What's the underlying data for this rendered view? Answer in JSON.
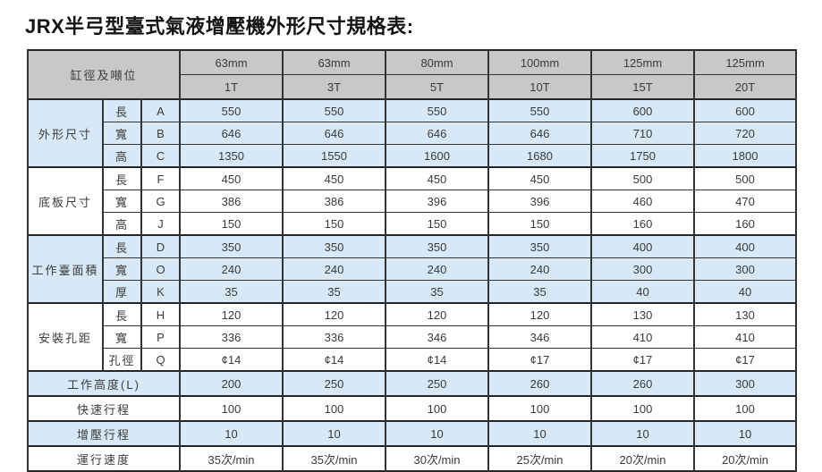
{
  "title": "JRX半弓型臺式氣液增壓機外形尺寸規格表:",
  "table": {
    "corner_header": "缸徑及噸位",
    "columns": [
      {
        "bore": "63mm",
        "tonnage": "1T"
      },
      {
        "bore": "63mm",
        "tonnage": "3T"
      },
      {
        "bore": "80mm",
        "tonnage": "5T"
      },
      {
        "bore": "100mm",
        "tonnage": "10T"
      },
      {
        "bore": "125mm",
        "tonnage": "15T"
      },
      {
        "bore": "125mm",
        "tonnage": "20T"
      }
    ],
    "groups": [
      {
        "label": "外形尺寸",
        "tint": "blue",
        "rows": [
          {
            "dim": "長",
            "code": "A",
            "values": [
              "550",
              "550",
              "550",
              "550",
              "600",
              "600"
            ]
          },
          {
            "dim": "寬",
            "code": "B",
            "values": [
              "646",
              "646",
              "646",
              "646",
              "710",
              "720"
            ]
          },
          {
            "dim": "高",
            "code": "C",
            "values": [
              "1350",
              "1550",
              "1600",
              "1680",
              "1750",
              "1800"
            ]
          }
        ]
      },
      {
        "label": "底板尺寸",
        "tint": "white",
        "rows": [
          {
            "dim": "長",
            "code": "F",
            "values": [
              "450",
              "450",
              "450",
              "450",
              "500",
              "500"
            ]
          },
          {
            "dim": "寬",
            "code": "G",
            "values": [
              "386",
              "386",
              "396",
              "396",
              "460",
              "470"
            ]
          },
          {
            "dim": "高",
            "code": "J",
            "values": [
              "150",
              "150",
              "150",
              "150",
              "160",
              "160"
            ]
          }
        ]
      },
      {
        "label": "工作臺面積",
        "tint": "blue",
        "rows": [
          {
            "dim": "長",
            "code": "D",
            "values": [
              "350",
              "350",
              "350",
              "350",
              "400",
              "400"
            ]
          },
          {
            "dim": "寬",
            "code": "O",
            "values": [
              "240",
              "240",
              "240",
              "240",
              "300",
              "300"
            ]
          },
          {
            "dim": "厚",
            "code": "K",
            "values": [
              "35",
              "35",
              "35",
              "35",
              "40",
              "40"
            ]
          }
        ]
      },
      {
        "label": "安裝孔距",
        "tint": "white",
        "rows": [
          {
            "dim": "長",
            "code": "H",
            "values": [
              "120",
              "120",
              "120",
              "120",
              "130",
              "130"
            ]
          },
          {
            "dim": "寬",
            "code": "P",
            "values": [
              "336",
              "336",
              "346",
              "346",
              "410",
              "410"
            ]
          },
          {
            "dim": "孔徑",
            "code": "Q",
            "values": [
              "¢14",
              "¢14",
              "¢14",
              "¢17",
              "¢17",
              "¢17"
            ]
          }
        ]
      }
    ],
    "footer_rows": [
      {
        "label": "工作高度(L)",
        "tint": "blue",
        "values": [
          "200",
          "250",
          "250",
          "260",
          "260",
          "300"
        ]
      },
      {
        "label": "快速行程",
        "tint": "white",
        "values": [
          "100",
          "100",
          "100",
          "100",
          "100",
          "100"
        ]
      },
      {
        "label": "增壓行程",
        "tint": "blue",
        "values": [
          "10",
          "10",
          "10",
          "10",
          "10",
          "10"
        ]
      },
      {
        "label": "運行速度",
        "tint": "white",
        "values": [
          "35次/min",
          "35次/min",
          "30次/min",
          "25次/min",
          "20次/min",
          "20次/min"
        ]
      }
    ],
    "colors": {
      "header_bg": "#c8c8c8",
      "row_blue": "#d7e9f7",
      "row_white": "#ffffff",
      "border": "#2b2b2b",
      "text": "#3a3a3a"
    }
  }
}
